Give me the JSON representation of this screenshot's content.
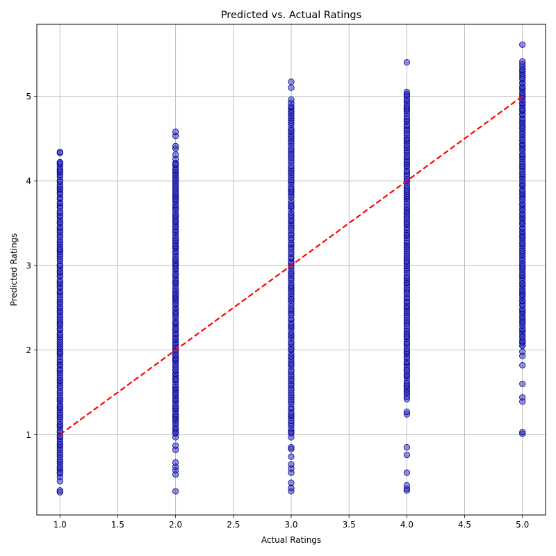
{
  "chart_data": {
    "type": "scatter",
    "title": "Predicted vs. Actual Ratings",
    "xlabel": "Actual Ratings",
    "ylabel": "Predicted Ratings",
    "xlim": [
      0.8,
      5.2
    ],
    "ylim": [
      0.05,
      5.85
    ],
    "x_ticks": [
      1.0,
      1.5,
      2.0,
      2.5,
      3.0,
      3.5,
      4.0,
      4.5,
      5.0
    ],
    "x_tick_labels": [
      "1.0",
      "1.5",
      "2.0",
      "2.5",
      "3.0",
      "3.5",
      "4.0",
      "4.5",
      "5.0"
    ],
    "y_ticks": [
      1,
      2,
      3,
      4,
      5
    ],
    "y_tick_labels": [
      "1",
      "2",
      "3",
      "4",
      "5"
    ],
    "grid": true,
    "point_color": "#3b3bc4",
    "point_edge_color": "#00008b",
    "reference_line_color": "#ff0000",
    "reference_line": {
      "x": [
        1,
        5
      ],
      "y": [
        1,
        5
      ],
      "style": "dashed"
    },
    "groups": [
      {
        "x": 1,
        "min": 0.32,
        "max": 4.34,
        "outliers": [
          0.32,
          0.34,
          0.45,
          0.5,
          0.55,
          4.2,
          4.22,
          4.33,
          4.34
        ]
      },
      {
        "x": 2,
        "min": 0.33,
        "max": 4.58,
        "outliers": [
          0.33,
          0.53,
          0.58,
          0.62,
          0.67,
          0.82,
          0.87,
          0.97,
          1.02,
          4.2,
          4.26,
          4.31,
          4.38,
          4.41,
          4.53,
          4.58
        ]
      },
      {
        "x": 3,
        "min": 0.33,
        "max": 5.17,
        "outliers": [
          0.33,
          0.37,
          0.43,
          0.55,
          0.6,
          0.65,
          0.74,
          0.83,
          0.85,
          0.97,
          1.02,
          4.88,
          4.92,
          4.96,
          5.1,
          5.17
        ]
      },
      {
        "x": 4,
        "min": 0.34,
        "max": 5.4,
        "outliers": [
          0.34,
          0.36,
          0.4,
          0.55,
          0.76,
          0.85,
          1.24,
          1.27,
          1.42,
          1.45,
          1.49,
          5.02,
          5.05,
          5.4
        ]
      },
      {
        "x": 5,
        "min": 1.01,
        "max": 5.61,
        "outliers": [
          1.01,
          1.03,
          1.39,
          1.44,
          1.6,
          1.82,
          1.93,
          1.98,
          2.05,
          5.31,
          5.35,
          5.38,
          5.41,
          5.61
        ]
      }
    ]
  }
}
